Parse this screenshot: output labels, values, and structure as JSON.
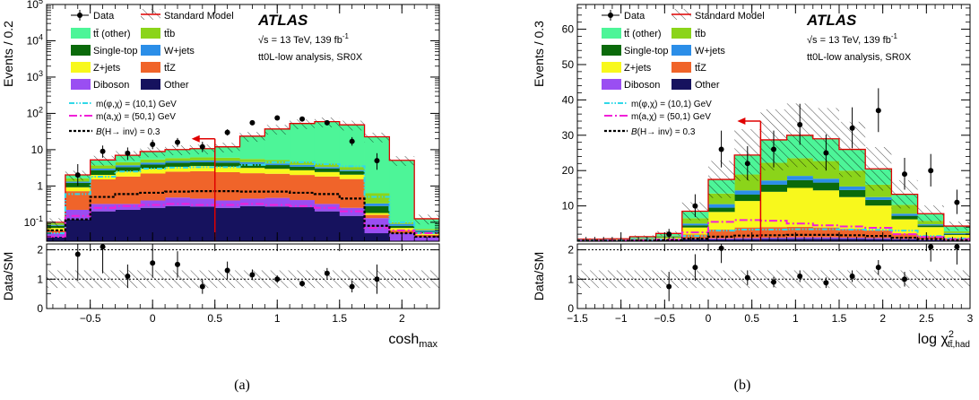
{
  "chart_data": [
    {
      "panel_label": "(a)",
      "type": "histogram-stacked",
      "xlabel": "cosh",
      "xlabel_sub": "max",
      "ylabel_top": "Events / 0.2",
      "ylabel_bottom": "Data/SM",
      "ylog": true,
      "ylim": [
        0.03,
        100000
      ],
      "xlim": [
        -0.85,
        2.3
      ],
      "x_ticks": [
        -0.5,
        0,
        0.5,
        1,
        1.5,
        2
      ],
      "x_tick_labels": [
        "−0.5",
        "0",
        "0.5",
        "1",
        "1.5",
        "2"
      ],
      "y_ticks": [
        0.1,
        1,
        10,
        100,
        1000,
        10000,
        100000
      ],
      "y_tick_labels": [
        "10⁻¹",
        "1",
        "10",
        "10²",
        "10³",
        "10⁴",
        "10⁵"
      ],
      "ratio_ylim": [
        0,
        2.2
      ],
      "ratio_ticks": [
        0,
        1,
        2
      ],
      "ratio_tick_labels": [
        "0",
        "1",
        "2"
      ],
      "edges": [
        -0.85,
        -0.7,
        -0.5,
        -0.3,
        -0.1,
        0.1,
        0.3,
        0.5,
        0.7,
        0.9,
        1.1,
        1.3,
        1.5,
        1.7,
        1.9,
        2.1,
        2.3
      ],
      "stack": [
        {
          "key": "other",
          "values": [
            0.04,
            0.12,
            0.2,
            0.22,
            0.25,
            0.28,
            0.27,
            0.25,
            0.28,
            0.27,
            0.26,
            0.2,
            0.15,
            0.05,
            0.03,
            0.03
          ]
        },
        {
          "key": "diboson",
          "values": [
            0.01,
            0.1,
            0.12,
            0.1,
            0.15,
            0.2,
            0.18,
            0.15,
            0.17,
            0.2,
            0.15,
            0.12,
            0.1,
            0.08,
            0.02,
            0.01
          ]
        },
        {
          "key": "ttZ",
          "values": [
            0.01,
            0.5,
            1.2,
            1.5,
            1.8,
            2.0,
            2.1,
            2.0,
            1.8,
            1.7,
            1.6,
            1.5,
            1.3,
            0.03,
            0.01,
            0.005
          ]
        },
        {
          "key": "zjets",
          "values": [
            0.01,
            0.2,
            0.5,
            0.7,
            0.8,
            0.9,
            1.0,
            1.0,
            0.9,
            0.8,
            0.7,
            0.6,
            0.5,
            0.02,
            0.01,
            0.005
          ]
        },
        {
          "key": "singletop",
          "values": [
            0.01,
            0.3,
            0.7,
            0.8,
            0.9,
            1.0,
            1.0,
            1.0,
            0.9,
            0.8,
            0.7,
            0.6,
            0.5,
            0.1,
            0.01,
            0.005
          ]
        },
        {
          "key": "wjets",
          "values": [
            0.005,
            0.1,
            0.3,
            0.4,
            0.5,
            0.5,
            0.5,
            0.5,
            0.5,
            0.4,
            0.4,
            0.3,
            0.2,
            0.05,
            0.01,
            0.005
          ]
        },
        {
          "key": "ttb",
          "values": [
            0.01,
            0.3,
            0.7,
            0.8,
            1.0,
            1.0,
            1.1,
            1.1,
            1.0,
            1.0,
            0.9,
            0.8,
            0.6,
            0.3,
            0.01,
            0.005
          ]
        },
        {
          "key": "ttother",
          "values": [
            0.005,
            0.4,
            1.5,
            2.5,
            3.5,
            4.2,
            4.5,
            6.0,
            18,
            32,
            48,
            55,
            45,
            22,
            5.0,
            0.06
          ]
        }
      ],
      "signals": [
        {
          "key": "sig1",
          "values": [
            0.05,
            0.6,
            1.8,
            2.5,
            3.0,
            3.2,
            3.3,
            3.3,
            3.8,
            4.5,
            4.5,
            4.0,
            3.5,
            0.5,
            0.1,
            0.05
          ]
        },
        {
          "key": "sig2",
          "values": [
            0.04,
            0.15,
            0.25,
            0.28,
            0.3,
            0.32,
            0.3,
            0.3,
            0.32,
            0.3,
            0.28,
            0.25,
            0.2,
            0.07,
            0.06,
            0.05
          ]
        },
        {
          "key": "sig3",
          "values": [
            0.06,
            0.12,
            0.5,
            0.6,
            0.65,
            0.7,
            0.72,
            0.72,
            0.7,
            0.7,
            0.65,
            0.6,
            0.45,
            0.08,
            0.05,
            0.04
          ]
        }
      ],
      "data_points": [
        {
          "x": -0.6,
          "y": 2.0,
          "err": [
            1.0,
            2.0
          ],
          "ratio": 1.85,
          "rerr": 0.9
        },
        {
          "x": -0.4,
          "y": 9.0,
          "err": [
            3.0,
            4.0
          ],
          "ratio": 2.1,
          "rerr": 0.9
        },
        {
          "x": -0.2,
          "y": 8.0,
          "err": [
            2.8,
            3.5
          ],
          "ratio": 1.1,
          "rerr": 0.4
        },
        {
          "x": 0.0,
          "y": 14.0,
          "err": [
            3.7,
            4.8
          ],
          "ratio": 1.55,
          "rerr": 0.5
        },
        {
          "x": 0.2,
          "y": 16.0,
          "err": [
            4.0,
            5.0
          ],
          "ratio": 1.5,
          "rerr": 0.45
        },
        {
          "x": 0.4,
          "y": 12.0,
          "err": [
            3.4,
            4.5
          ],
          "ratio": 0.75,
          "rerr": 0.25
        },
        {
          "x": 0.6,
          "y": 30.0,
          "err": [
            5.5,
            6.5
          ],
          "ratio": 1.3,
          "rerr": 0.3
        },
        {
          "x": 0.8,
          "y": 55.0,
          "err": [
            7.4,
            8.5
          ],
          "ratio": 1.15,
          "rerr": 0.18
        },
        {
          "x": 1.0,
          "y": 75.0,
          "err": [
            8.6,
            9.6
          ],
          "ratio": 1.0,
          "rerr": 0.13
        },
        {
          "x": 1.2,
          "y": 70.0,
          "err": [
            8.3,
            9.3
          ],
          "ratio": 0.85,
          "rerr": 0.11
        },
        {
          "x": 1.4,
          "y": 55.0,
          "err": [
            7.4,
            8.5
          ],
          "ratio": 1.2,
          "rerr": 0.18
        },
        {
          "x": 1.6,
          "y": 17.0,
          "err": [
            4.1,
            5.2
          ],
          "ratio": 0.75,
          "rerr": 0.2
        },
        {
          "x": 1.8,
          "y": 5.0,
          "err": [
            2.2,
            3.0
          ],
          "ratio": 1.0,
          "rerr": 0.5
        }
      ],
      "cut": {
        "x": 0.5,
        "y": 20
      }
    },
    {
      "panel_label": "(b)",
      "type": "histogram-stacked",
      "xlabel": "log χ",
      "xlabel_sup": "2",
      "xlabel_sub": "tt̄,had",
      "ylabel_top": "Events / 0.3",
      "ylabel_bottom": "Data/SM",
      "ylog": false,
      "ylim": [
        0,
        67
      ],
      "xlim": [
        -1.5,
        3.0
      ],
      "x_ticks": [
        -1.5,
        -1,
        -0.5,
        0,
        0.5,
        1,
        1.5,
        2,
        2.5,
        3
      ],
      "x_tick_labels": [
        "−1.5",
        "−1",
        "−0.5",
        "0",
        "0.5",
        "1",
        "1.5",
        "2",
        "2.5",
        "3"
      ],
      "y_ticks": [
        10,
        20,
        30,
        40,
        50,
        60
      ],
      "y_tick_labels": [
        "10",
        "20",
        "30",
        "40",
        "50",
        "60"
      ],
      "ratio_ylim": [
        0,
        2.2
      ],
      "ratio_ticks": [
        0,
        1,
        2
      ],
      "ratio_tick_labels": [
        "0",
        "1",
        "2"
      ],
      "edges": [
        -1.5,
        -1.2,
        -0.9,
        -0.6,
        -0.3,
        0.0,
        0.3,
        0.6,
        0.9,
        1.2,
        1.5,
        1.8,
        2.1,
        2.4,
        2.7,
        3.0
      ],
      "stack": [
        {
          "key": "other",
          "values": [
            0.2,
            0.2,
            0.2,
            0.3,
            0.5,
            0.5,
            0.6,
            0.7,
            0.7,
            0.7,
            0.7,
            0.6,
            0.5,
            0.3,
            0.2
          ]
        },
        {
          "key": "diboson",
          "values": [
            0.1,
            0.1,
            0.1,
            0.1,
            0.2,
            0.3,
            0.3,
            0.3,
            0.4,
            0.4,
            0.3,
            0.3,
            0.2,
            0.2,
            0.1
          ]
        },
        {
          "key": "ttZ",
          "values": [
            0.1,
            0.1,
            0.2,
            0.3,
            1.2,
            2.5,
            3.0,
            3.0,
            3.0,
            2.8,
            2.5,
            2.2,
            1.5,
            1.0,
            0.5
          ]
        },
        {
          "key": "zjets",
          "values": [
            0.1,
            0.1,
            0.2,
            0.4,
            2.0,
            5.0,
            7.5,
            10.0,
            11.0,
            10.5,
            9.0,
            7.0,
            4.0,
            2.5,
            1.0
          ]
        },
        {
          "key": "singletop",
          "values": [
            0.0,
            0.0,
            0.1,
            0.2,
            0.6,
            1.2,
            1.8,
            2.0,
            2.2,
            2.2,
            2.0,
            1.6,
            1.0,
            0.5,
            0.3
          ]
        },
        {
          "key": "wjets",
          "values": [
            0.0,
            0.0,
            0.1,
            0.1,
            0.5,
            1.0,
            1.2,
            1.2,
            1.2,
            1.1,
            1.0,
            0.8,
            0.6,
            0.3,
            0.2
          ]
        },
        {
          "key": "ttb",
          "values": [
            0.0,
            0.0,
            0.1,
            0.2,
            1.5,
            3.0,
            4.5,
            5.0,
            5.0,
            5.0,
            4.5,
            3.5,
            2.5,
            1.0,
            0.5
          ]
        },
        {
          "key": "ttother",
          "values": [
            0.1,
            0.2,
            0.3,
            0.6,
            2.0,
            4.0,
            5.5,
            6.5,
            6.5,
            6.3,
            6.0,
            4.5,
            3.0,
            2.0,
            1.5
          ]
        }
      ],
      "signals": [
        {
          "key": "sig1",
          "values": [
            0.3,
            0.3,
            0.4,
            0.6,
            1.5,
            3.0,
            3.3,
            3.3,
            3.4,
            3.4,
            3.3,
            3.2,
            3.0,
            1.5,
            0.8
          ]
        },
        {
          "key": "sig2",
          "values": [
            0.1,
            0.2,
            0.3,
            0.5,
            2.5,
            5.5,
            6.0,
            5.8,
            5.0,
            4.5,
            4.2,
            3.8,
            2.0,
            1.2,
            0.6
          ]
        },
        {
          "key": "sig3",
          "values": [
            0.1,
            0.1,
            0.2,
            0.3,
            0.7,
            1.3,
            1.6,
            1.7,
            1.8,
            1.8,
            1.7,
            1.5,
            1.0,
            0.6,
            0.3
          ]
        }
      ],
      "data_points": [
        {
          "x": -0.45,
          "y": 2.0,
          "err": [
            1.4,
            1.5
          ],
          "ratio": 0.75,
          "rerr": 0.5
        },
        {
          "x": -0.15,
          "y": 10.0,
          "err": [
            3.1,
            3.3
          ],
          "ratio": 1.4,
          "rerr": 0.45
        },
        {
          "x": 0.15,
          "y": 26.0,
          "err": [
            5.1,
            5.3
          ],
          "ratio": 2.05,
          "rerr": 0.5
        },
        {
          "x": 0.45,
          "y": 22.0,
          "err": [
            4.7,
            4.9
          ],
          "ratio": 1.05,
          "rerr": 0.25
        },
        {
          "x": 0.75,
          "y": 26.0,
          "err": [
            5.1,
            5.3
          ],
          "ratio": 0.9,
          "rerr": 0.18
        },
        {
          "x": 1.05,
          "y": 33.0,
          "err": [
            5.7,
            5.9
          ],
          "ratio": 1.1,
          "rerr": 0.2
        },
        {
          "x": 1.35,
          "y": 25.0,
          "err": [
            5.0,
            5.2
          ],
          "ratio": 0.88,
          "rerr": 0.18
        },
        {
          "x": 1.65,
          "y": 32.0,
          "err": [
            5.7,
            5.9
          ],
          "ratio": 1.1,
          "rerr": 0.2
        },
        {
          "x": 1.95,
          "y": 37.0,
          "err": [
            6.1,
            6.3
          ],
          "ratio": 1.4,
          "rerr": 0.25
        },
        {
          "x": 2.25,
          "y": 19.0,
          "err": [
            4.4,
            4.6
          ],
          "ratio": 1.0,
          "rerr": 0.25
        },
        {
          "x": 2.55,
          "y": 20.0,
          "err": [
            4.5,
            4.7
          ],
          "ratio": 2.1,
          "rerr": 0.5
        },
        {
          "x": 2.85,
          "y": 11.0,
          "err": [
            3.3,
            3.6
          ],
          "ratio": 2.1,
          "rerr": 0.6
        }
      ],
      "cut": {
        "x": 0.6,
        "y": 34
      }
    }
  ],
  "legend": {
    "data": "Data",
    "sm": "Standard Model",
    "ttother": "tt̄ (other)",
    "ttb": "tt̄b",
    "singletop": "Single-top",
    "wjets": "W+jets",
    "zjets": "Z+jets",
    "ttZ": "tt̄Z",
    "diboson": "Diboson",
    "other": "Other",
    "sig1": "m(φ,χ) = (10,1) GeV",
    "sig2": "m(a,χ) = (50,1) GeV",
    "sig3_pre": "B",
    "sig3_post": "(H→ inv) = 0.3"
  },
  "atlas": {
    "title": "ATLAS",
    "energy": "√s = 13 TeV, 139 fb",
    "lumi_exp": "-1",
    "analysis": "tt0L-low analysis, SR0X"
  },
  "colors": {
    "ttother": "#4df598",
    "ttb": "#8bd41a",
    "singletop": "#0b6a0b",
    "wjets": "#2b8ee8",
    "zjets": "#f8f81c",
    "ttZ": "#f0642a",
    "diboson": "#9a4ef2",
    "other": "#16125e",
    "sm_line": "#e00000",
    "sig1": "#30d8e8",
    "sig2": "#f020d8",
    "sig3": "#000000",
    "arrow": "#e00000"
  }
}
